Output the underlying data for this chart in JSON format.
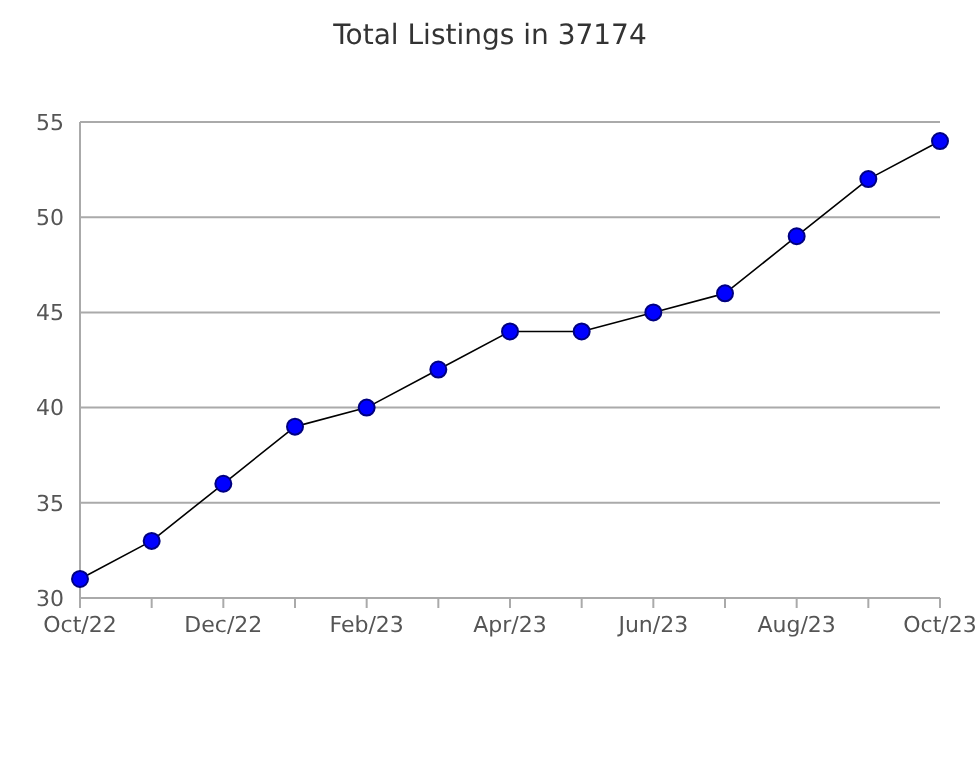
{
  "chart_data": {
    "type": "line",
    "title": "Total Listings in 37174",
    "categories": [
      "Oct/22",
      null,
      "Dec/22",
      null,
      "Feb/23",
      null,
      "Apr/23",
      null,
      "Jun/23",
      null,
      "Aug/23",
      null,
      "Oct/23"
    ],
    "series": [
      {
        "color": "#0000ff",
        "values": [
          31,
          33,
          36,
          39,
          40,
          42,
          44,
          44,
          45,
          46,
          49,
          52,
          54
        ]
      }
    ],
    "ylim": [
      30,
      55
    ],
    "yticks": [
      30,
      35,
      40,
      45,
      50,
      55
    ],
    "grid": "y",
    "marker": "circle",
    "line_style": "solid"
  }
}
